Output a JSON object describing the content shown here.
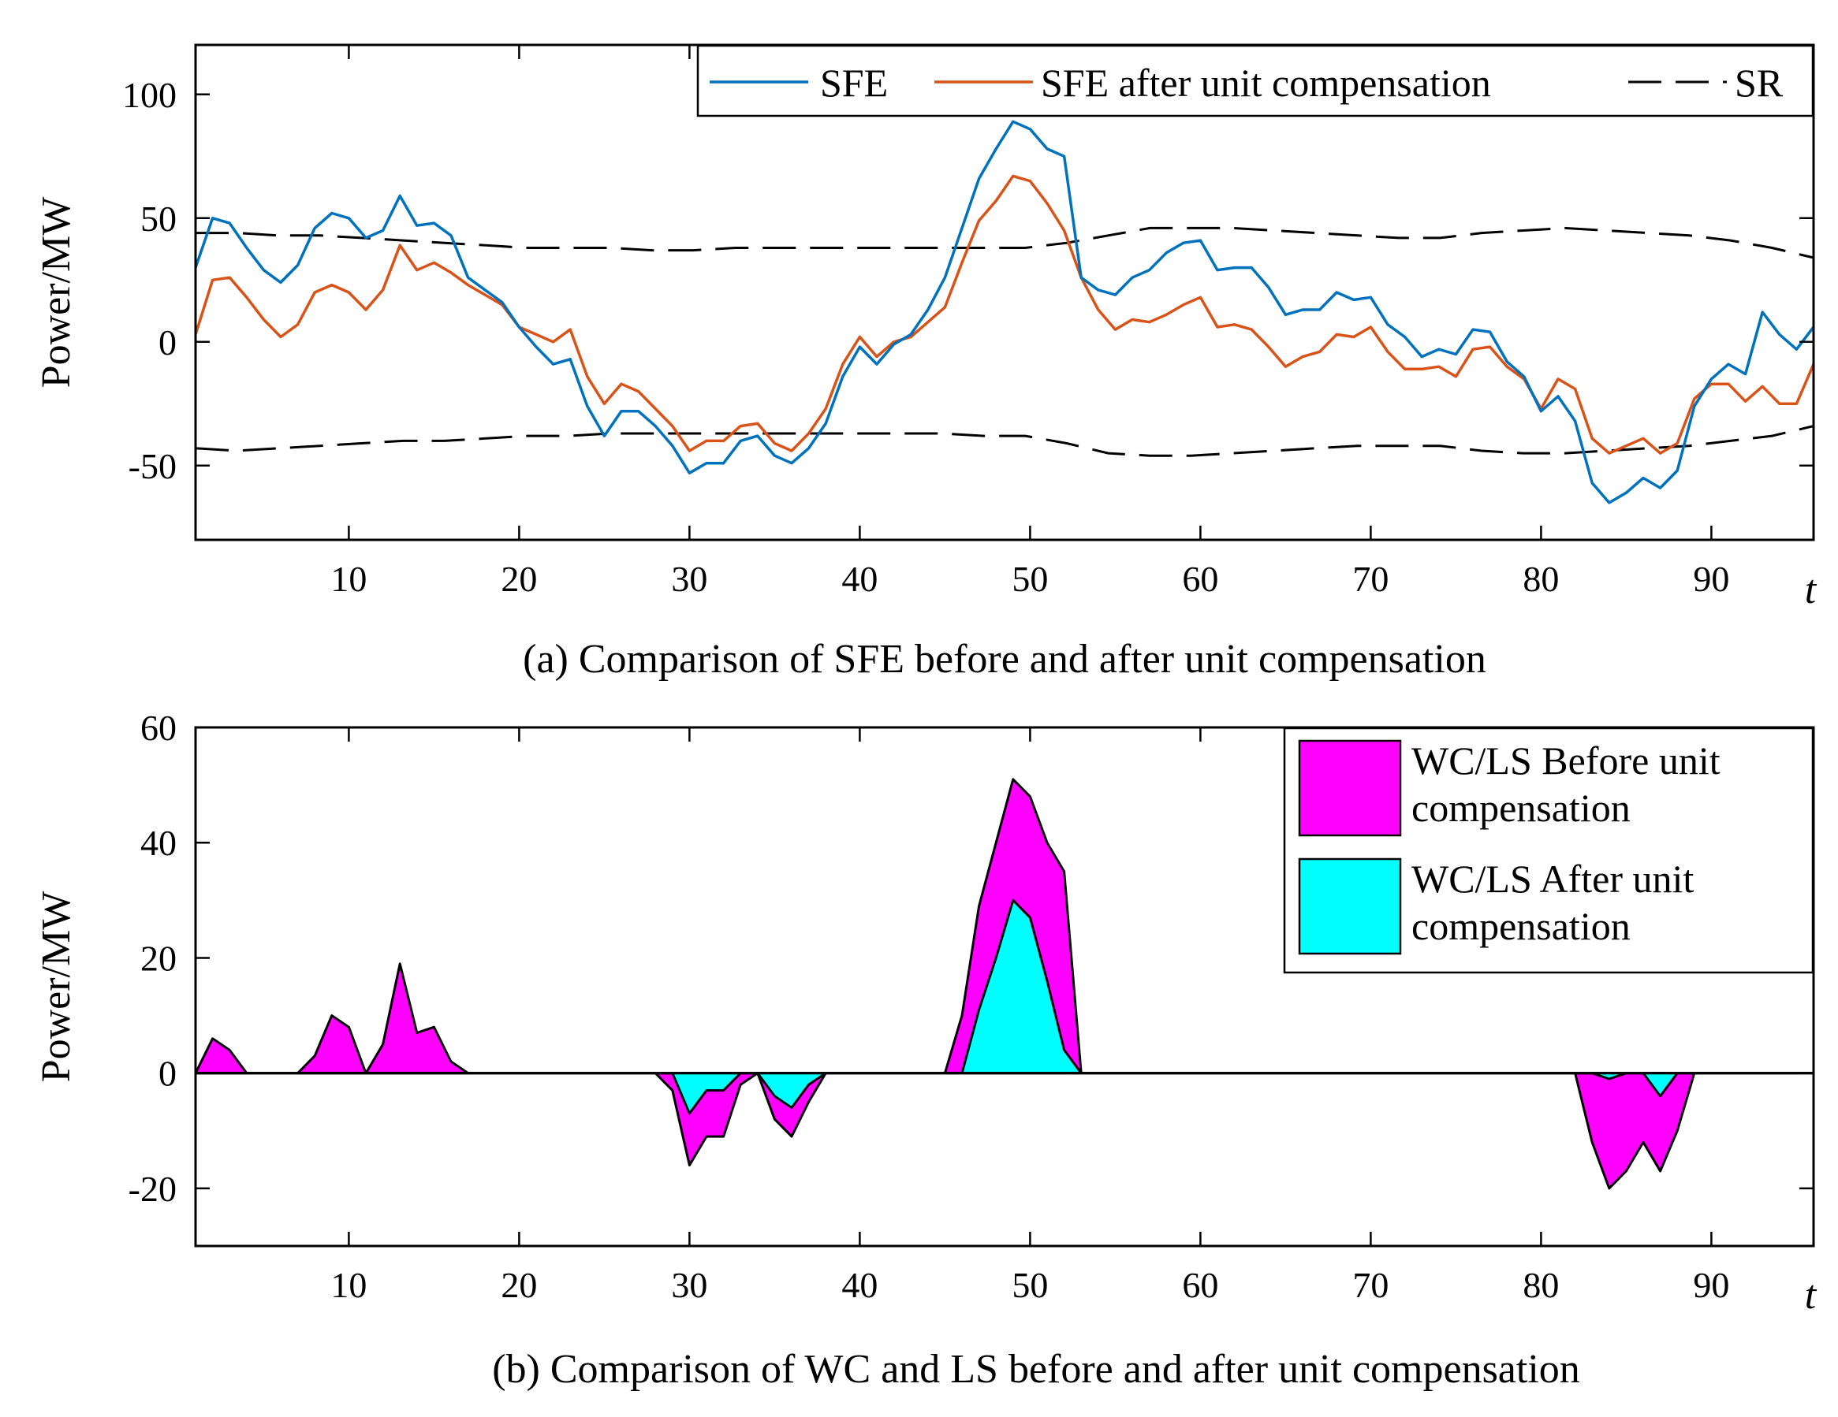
{
  "chart_data": [
    {
      "type": "line",
      "caption": "(a) Comparison of SFE before and after unit compensation",
      "ylabel": "Power/MW",
      "xlabel": "t",
      "xlim": [
        1,
        96
      ],
      "ylim": [
        -80,
        120
      ],
      "xticks": [
        10,
        20,
        30,
        40,
        50,
        60,
        70,
        80,
        90
      ],
      "yticks": [
        -50,
        0,
        50,
        100
      ],
      "legend_position": "top-right",
      "legend_labels": [
        "SFE",
        "SFE after unit compensation",
        "SR"
      ],
      "series": [
        {
          "name": "SFE",
          "color": "#0072BD",
          "values": [
            30,
            50,
            48,
            38,
            29,
            24,
            31,
            46,
            52,
            50,
            42,
            45,
            59,
            47,
            48,
            43,
            26,
            21,
            16,
            6,
            -2,
            -9,
            -7,
            -26,
            -38,
            -28,
            -28,
            -34,
            -42,
            -53,
            -49,
            -49,
            -40,
            -38,
            -46,
            -49,
            -43,
            -33,
            -14,
            -2,
            -9,
            -1,
            3,
            13,
            26,
            46,
            66,
            78,
            89,
            86,
            78,
            75,
            26,
            21,
            19,
            26,
            29,
            36,
            40,
            41,
            29,
            30,
            30,
            22,
            11,
            13,
            13,
            20,
            17,
            18,
            7,
            2,
            -6,
            -3,
            -5,
            5,
            4,
            -8,
            -14,
            -28,
            -22,
            -32,
            -57,
            -65,
            -61,
            -55,
            -59,
            -52,
            -26,
            -15,
            -9,
            -13,
            12,
            3,
            -3,
            6
          ]
        },
        {
          "name": "SFE after unit compensation",
          "color": "#D95319",
          "values": [
            3,
            25,
            26,
            18,
            9,
            2,
            7,
            20,
            23,
            20,
            13,
            21,
            39,
            29,
            32,
            28,
            23,
            19,
            15,
            6,
            3,
            0,
            5,
            -14,
            -25,
            -17,
            -20,
            -27,
            -34,
            -44,
            -40,
            -40,
            -34,
            -33,
            -41,
            -44,
            -37,
            -27,
            -9,
            2,
            -6,
            0,
            2,
            8,
            14,
            32,
            49,
            57,
            67,
            65,
            56,
            45,
            26,
            13,
            5,
            9,
            8,
            11,
            15,
            18,
            6,
            7,
            5,
            -2,
            -10,
            -6,
            -4,
            3,
            2,
            6,
            -4,
            -11,
            -11,
            -10,
            -14,
            -3,
            -2,
            -10,
            -15,
            -27,
            -15,
            -19,
            -39,
            -45,
            -42,
            -39,
            -45,
            -41,
            -23,
            -17,
            -17,
            -24,
            -18,
            -25,
            -25,
            -9
          ]
        },
        {
          "name": "SR upper",
          "color": "#000000",
          "values": [
            44,
            44,
            43,
            43,
            42,
            41,
            40,
            39,
            38,
            38,
            38,
            37,
            37,
            38,
            38,
            38,
            38,
            38,
            38,
            38,
            38,
            40,
            43,
            46,
            46,
            46,
            45,
            44,
            43,
            42,
            42,
            44,
            45,
            46,
            45,
            44,
            43,
            41,
            38,
            34
          ]
        },
        {
          "name": "SR lower",
          "color": "#000000",
          "values": [
            -43,
            -44,
            -43,
            -42,
            -41,
            -40,
            -40,
            -39,
            -38,
            -38,
            -37,
            -37,
            -37,
            -37,
            -37,
            -37,
            -37,
            -37,
            -37,
            -38,
            -38,
            -41,
            -45,
            -46,
            -46,
            -45,
            -44,
            -43,
            -42,
            -42,
            -42,
            -44,
            -45,
            -45,
            -44,
            -43,
            -42,
            -40,
            -38,
            -34
          ]
        }
      ]
    },
    {
      "type": "area",
      "caption": "(b) Comparison of WC and LS before and after unit compensation",
      "ylabel": "Power/MW",
      "xlabel": "t",
      "xlim": [
        1,
        96
      ],
      "ylim": [
        -30,
        60
      ],
      "xticks": [
        10,
        20,
        30,
        40,
        50,
        60,
        70,
        80,
        90
      ],
      "yticks": [
        -20,
        0,
        20,
        40,
        60
      ],
      "legend_position": "top-right",
      "legend_labels": [
        "WC/LS Before unit compensation",
        "WC/LS After unit compensation"
      ],
      "series": [
        {
          "name": "WC/LS Before unit compensation",
          "color": "#FF00FF",
          "values": [
            0,
            6,
            4,
            0,
            0,
            0,
            0,
            3,
            10,
            8,
            0,
            5,
            19,
            7,
            8,
            2,
            0,
            0,
            0,
            0,
            0,
            0,
            0,
            0,
            0,
            0,
            0,
            0,
            -3,
            -16,
            -11,
            -11,
            -2,
            0,
            -8,
            -11,
            -5,
            0,
            0,
            0,
            0,
            0,
            0,
            0,
            0,
            10,
            29,
            40,
            51,
            48,
            40,
            35,
            0,
            0,
            0,
            0,
            0,
            0,
            0,
            0,
            0,
            0,
            0,
            0,
            0,
            0,
            0,
            0,
            0,
            0,
            0,
            0,
            0,
            0,
            0,
            0,
            0,
            0,
            0,
            0,
            0,
            0,
            -12,
            -20,
            -17,
            -12,
            -17,
            -10,
            0,
            0,
            0,
            0,
            0,
            0,
            0,
            0
          ]
        },
        {
          "name": "WC/LS After unit compensation",
          "color": "#00FFFF",
          "values": [
            0,
            0,
            0,
            0,
            0,
            0,
            0,
            0,
            0,
            0,
            0,
            0,
            0,
            0,
            0,
            0,
            0,
            0,
            0,
            0,
            0,
            0,
            0,
            0,
            0,
            0,
            0,
            0,
            0,
            -7,
            -3,
            -3,
            0,
            0,
            -4,
            -6,
            -2,
            0,
            0,
            0,
            0,
            0,
            0,
            0,
            0,
            0,
            11,
            20,
            30,
            27,
            16,
            4,
            0,
            0,
            0,
            0,
            0,
            0,
            0,
            0,
            0,
            0,
            0,
            0,
            0,
            0,
            0,
            0,
            0,
            0,
            0,
            0,
            0,
            0,
            0,
            0,
            0,
            0,
            0,
            0,
            0,
            0,
            0,
            -1,
            0,
            0,
            -4,
            0,
            0,
            0,
            0,
            0,
            0,
            0,
            0,
            0
          ]
        }
      ]
    }
  ]
}
